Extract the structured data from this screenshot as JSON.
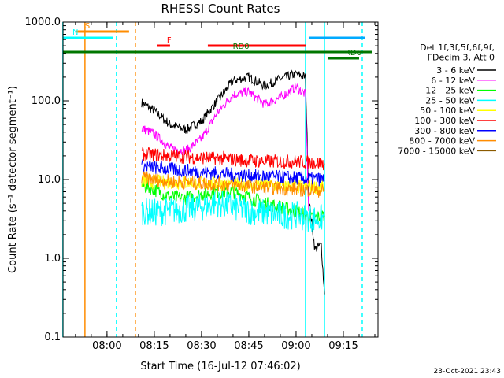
{
  "chart_data": {
    "type": "line",
    "title": "RHESSI Count Rates",
    "xlabel": "Start Time (16-Jul-12 07:46:02)",
    "ylabel": "Count Rate (s⁻¹ detector segment⁻¹)",
    "yscale": "log",
    "ylim": [
      0.1,
      1000.0
    ],
    "y_tick_labels": [
      "0.1",
      "1.0",
      "10.0",
      "100.0",
      "1000.0"
    ],
    "y_tick_values": [
      0.1,
      1,
      10,
      100,
      1000
    ],
    "xlim": [
      "07:46:02",
      "09:26:00"
    ],
    "x_tick_labels": [
      "08:00",
      "08:15",
      "08:30",
      "08:45",
      "09:00",
      "09:15"
    ],
    "grid": false,
    "legend_position": "right",
    "legend_header": [
      "Det 1f,3f,5f,6f,9f,",
      "FDecim 3, Att 0"
    ],
    "timestamp": "23-Oct-2021 23:43",
    "series": [
      {
        "name": "3 - 6 keV",
        "color": "#000000",
        "x": [
          "08:11",
          "08:15",
          "08:20",
          "08:25",
          "08:30",
          "08:35",
          "08:40",
          "08:45",
          "08:50",
          "08:55",
          "09:00",
          "09:03",
          "09:04",
          "09:06",
          "09:08",
          "09:09"
        ],
        "values": [
          95,
          75,
          50,
          43,
          55,
          100,
          180,
          200,
          155,
          190,
          220,
          200,
          6,
          1.3,
          1.5,
          0.35
        ]
      },
      {
        "name": "6 - 12 keV",
        "color": "#ff00ff",
        "x": [
          "08:11",
          "08:15",
          "08:20",
          "08:25",
          "08:30",
          "08:35",
          "08:40",
          "08:45",
          "08:50",
          "08:55",
          "09:00",
          "09:03",
          "09:04"
        ],
        "values": [
          45,
          38,
          25,
          23,
          33,
          70,
          120,
          130,
          90,
          110,
          150,
          120,
          4
        ]
      },
      {
        "name": "12 - 25 keV",
        "color": "#00ff00",
        "x": [
          "08:11",
          "08:15",
          "08:20",
          "08:25",
          "08:30",
          "08:35",
          "08:40",
          "08:45",
          "08:50",
          "08:55",
          "09:00",
          "09:03",
          "09:05",
          "09:09"
        ],
        "values": [
          8.5,
          7.5,
          6.0,
          5.8,
          6.5,
          7.0,
          7.0,
          6.0,
          5.0,
          4.5,
          4.0,
          3.6,
          3.2,
          3.5
        ]
      },
      {
        "name": "25 - 50 keV",
        "color": "#00ffff",
        "x": [
          "08:11",
          "08:15",
          "08:20",
          "08:25",
          "08:30",
          "08:35",
          "08:40",
          "08:45",
          "08:50",
          "08:55",
          "09:00",
          "09:03",
          "09:05",
          "09:09"
        ],
        "values": [
          4.0,
          3.8,
          4.0,
          4.2,
          4.5,
          5.0,
          4.5,
          4.0,
          3.8,
          3.5,
          3.5,
          3.3,
          3.2,
          3.2
        ]
      },
      {
        "name": "50 - 100 keV",
        "color": "#ffff00",
        "x": [
          "08:11",
          "08:30",
          "08:50",
          "09:09"
        ],
        "values": [
          9.5,
          9.0,
          8.5,
          8.0
        ]
      },
      {
        "name": "100 - 300 keV",
        "color": "#ff0000",
        "x": [
          "08:11",
          "08:20",
          "08:30",
          "08:40",
          "08:50",
          "09:00",
          "09:09"
        ],
        "values": [
          21,
          20,
          19,
          18,
          17,
          17,
          16
        ]
      },
      {
        "name": "300 - 800 keV",
        "color": "#0000ff",
        "x": [
          "08:11",
          "08:20",
          "08:30",
          "08:40",
          "08:50",
          "09:00",
          "09:09"
        ],
        "values": [
          15,
          13.5,
          12.5,
          11.5,
          11,
          10.5,
          10
        ]
      },
      {
        "name": "800 - 7000 keV",
        "color": "#ff8c00",
        "x": [
          "08:11",
          "08:20",
          "08:30",
          "08:40",
          "08:50",
          "09:00",
          "09:09"
        ],
        "values": [
          10.5,
          9.5,
          9.0,
          8.5,
          8.0,
          7.5,
          7.2
        ]
      },
      {
        "name": "7000 - 15000 keV",
        "color": "#8b5a00",
        "x": [],
        "values": []
      }
    ],
    "annotations": [
      {
        "label": "S",
        "color": "#ff8c00",
        "start": "07:50",
        "end": "08:07"
      },
      {
        "label": "N",
        "color": "#00ffff",
        "start": "07:46",
        "end": "08:02"
      },
      {
        "label": "F",
        "color": "#ff0000",
        "start": "08:16",
        "end": "08:20"
      },
      {
        "label": "",
        "color": "#ff0000",
        "start": "08:32",
        "end": "09:03"
      },
      {
        "label": "",
        "color": "#00aaff",
        "start": "09:04",
        "end": "09:22"
      },
      {
        "label": "RD0",
        "color": "#007700",
        "start": "07:46",
        "end": "09:24"
      },
      {
        "label": "RD6",
        "color": "#007700",
        "start": "09:10",
        "end": "09:20"
      }
    ],
    "vertical_lines": [
      {
        "time": "07:46",
        "color": "#00ffff",
        "style": "solid"
      },
      {
        "time": "07:53",
        "color": "#ff8c00",
        "style": "solid"
      },
      {
        "time": "08:03",
        "color": "#00ffff",
        "style": "dashed"
      },
      {
        "time": "08:09",
        "color": "#ff8c00",
        "style": "dashed"
      },
      {
        "time": "09:03",
        "color": "#00ffff",
        "style": "solid"
      },
      {
        "time": "09:09",
        "color": "#00ffff",
        "style": "solid"
      },
      {
        "time": "09:21",
        "color": "#00ffff",
        "style": "dashed"
      }
    ]
  }
}
